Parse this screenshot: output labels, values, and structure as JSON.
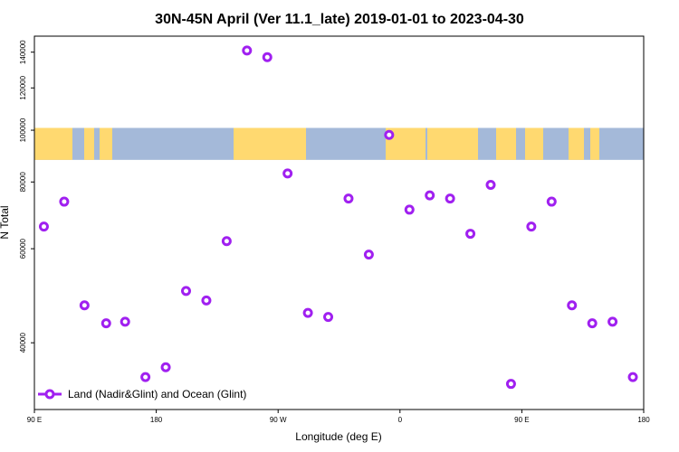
{
  "chart_data": {
    "type": "scatter",
    "title": "30N-45N April (Ver 11.1_late)   2019-01-01 to 2023-04-30",
    "xlabel": "Longitude (deg E)",
    "ylabel": "N Total",
    "y_scale": "log",
    "x_ticks": [
      {
        "value": 90,
        "label": "90 E"
      },
      {
        "value": 180,
        "label": "180"
      },
      {
        "value": 270,
        "label": "90 W"
      },
      {
        "value": 360,
        "label": "0"
      },
      {
        "value": 450,
        "label": "90 E"
      },
      {
        "value": 540,
        "label": "180"
      }
    ],
    "y_ticks": [
      {
        "value": 40000,
        "label": "40000"
      },
      {
        "value": 60000,
        "label": "60000"
      },
      {
        "value": 80000,
        "label": "80000"
      },
      {
        "value": 100000,
        "label": "100000"
      },
      {
        "value": 120000,
        "label": "120000"
      },
      {
        "value": 140000,
        "label": "140000"
      }
    ],
    "xlim": [
      90,
      540
    ],
    "ylim": [
      30000,
      150000
    ],
    "grid": false,
    "legend_position": "bottom-left",
    "map_band": {
      "description": "world map strip 30N-45N",
      "ocean_color": "#a4b9d9",
      "land_color": "#ffd970",
      "y_range": [
        88000,
        101000
      ]
    },
    "series": [
      {
        "name": "Land (Nadir&Glint) and Ocean (Glint)",
        "color": "#a020f0",
        "points": [
          {
            "x": 97,
            "y": 66000
          },
          {
            "x": 112,
            "y": 73500
          },
          {
            "x": 127,
            "y": 47000
          },
          {
            "x": 143,
            "y": 43500
          },
          {
            "x": 157,
            "y": 43800
          },
          {
            "x": 172,
            "y": 34500
          },
          {
            "x": 187,
            "y": 36000
          },
          {
            "x": 202,
            "y": 50000
          },
          {
            "x": 217,
            "y": 48000
          },
          {
            "x": 232,
            "y": 62000
          },
          {
            "x": 247,
            "y": 141000
          },
          {
            "x": 262,
            "y": 137000
          },
          {
            "x": 277,
            "y": 83000
          },
          {
            "x": 292,
            "y": 45500
          },
          {
            "x": 307,
            "y": 44700
          },
          {
            "x": 322,
            "y": 74500
          },
          {
            "x": 337,
            "y": 58500
          },
          {
            "x": 352,
            "y": 98000
          },
          {
            "x": 367,
            "y": 71000
          },
          {
            "x": 382,
            "y": 75500
          },
          {
            "x": 397,
            "y": 74500
          },
          {
            "x": 412,
            "y": 64000
          },
          {
            "x": 427,
            "y": 79000
          },
          {
            "x": 442,
            "y": 33500
          },
          {
            "x": 457,
            "y": 66000
          },
          {
            "x": 472,
            "y": 73500
          },
          {
            "x": 487,
            "y": 47000
          },
          {
            "x": 502,
            "y": 43500
          },
          {
            "x": 517,
            "y": 43800
          },
          {
            "x": 532,
            "y": 34500
          }
        ]
      }
    ]
  }
}
